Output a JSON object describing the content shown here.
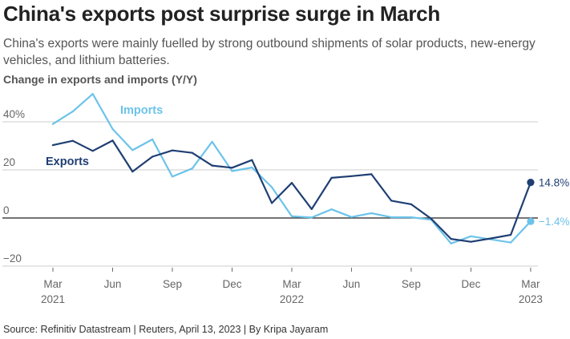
{
  "header": {
    "title": "China's exports post surprise surge in March",
    "subtitle": "China's exports were mainly fuelled by strong outbound shipments of solar products, new-energy vehicles, and lithium batteries.",
    "axis_title": "Change in exports and imports (Y/Y)"
  },
  "footer": {
    "source": "Source: Refinitiv Datastream | Reuters, April 13, 2023 | By Kripa Jayaram"
  },
  "colors": {
    "exports": "#1f3f73",
    "imports": "#6cc3ea",
    "grid": "#cccccc",
    "zero_line": "#222222",
    "tick_text": "#666666"
  },
  "chart_data": {
    "type": "line",
    "title": "China's exports post surprise surge in March",
    "subtitle": "China's exports were mainly fuelled by strong outbound shipments of solar products, new-energy vehicles, and lithium batteries.",
    "xlabel": "",
    "ylabel": "Change in exports and imports (Y/Y)",
    "ylim": [
      -22,
      55
    ],
    "grid": true,
    "x": [
      "Mar 2021",
      "Apr 2021",
      "May 2021",
      "Jun 2021",
      "Jul 2021",
      "Aug 2021",
      "Sep 2021",
      "Oct 2021",
      "Nov 2021",
      "Dec 2021",
      "Jan 2022",
      "Feb 2022",
      "Mar 2022",
      "Apr 2022",
      "May 2022",
      "Jun 2022",
      "Jul 2022",
      "Aug 2022",
      "Sep 2022",
      "Oct 2022",
      "Nov 2022",
      "Dec 2022",
      "Jan 2023",
      "Feb 2023",
      "Mar 2023"
    ],
    "yticks": [
      {
        "value": 40,
        "label": "40%"
      },
      {
        "value": 20,
        "label": "20"
      },
      {
        "value": 0,
        "label": "0"
      },
      {
        "value": -20,
        "label": "−20"
      }
    ],
    "xticks": [
      {
        "index": 0,
        "label": "Mar",
        "sublabel": "2021"
      },
      {
        "index": 3,
        "label": "Jun",
        "sublabel": ""
      },
      {
        "index": 6,
        "label": "Sep",
        "sublabel": ""
      },
      {
        "index": 9,
        "label": "Dec",
        "sublabel": ""
      },
      {
        "index": 12,
        "label": "Mar",
        "sublabel": "2022"
      },
      {
        "index": 15,
        "label": "Jun",
        "sublabel": ""
      },
      {
        "index": 18,
        "label": "Sep",
        "sublabel": ""
      },
      {
        "index": 21,
        "label": "Dec",
        "sublabel": ""
      },
      {
        "index": 24,
        "label": "Mar",
        "sublabel": "2023"
      }
    ],
    "series": [
      {
        "name": "Exports",
        "key": "exports",
        "values": [
          30.3,
          32.1,
          27.9,
          32.2,
          19.3,
          25.5,
          28.1,
          27.1,
          21.8,
          20.9,
          24.1,
          6.2,
          14.6,
          3.7,
          16.7,
          17.4,
          18.2,
          7.2,
          5.7,
          -0.3,
          -8.7,
          -9.9,
          -8.5,
          -7.0,
          14.8
        ],
        "end_label": "14.8%",
        "label_anchor_index": 1
      },
      {
        "name": "Imports",
        "key": "imports",
        "values": [
          39.1,
          44.3,
          51.6,
          37.0,
          28.2,
          32.7,
          17.2,
          20.6,
          31.7,
          19.5,
          21.0,
          12.8,
          0.7,
          0.2,
          3.6,
          0.4,
          2.0,
          0.3,
          0.3,
          -0.7,
          -10.6,
          -7.6,
          -8.9,
          -10.2,
          -1.4
        ],
        "end_label": "−1.4%",
        "label_anchor_index": 4
      }
    ],
    "legend": "inline-labels"
  }
}
